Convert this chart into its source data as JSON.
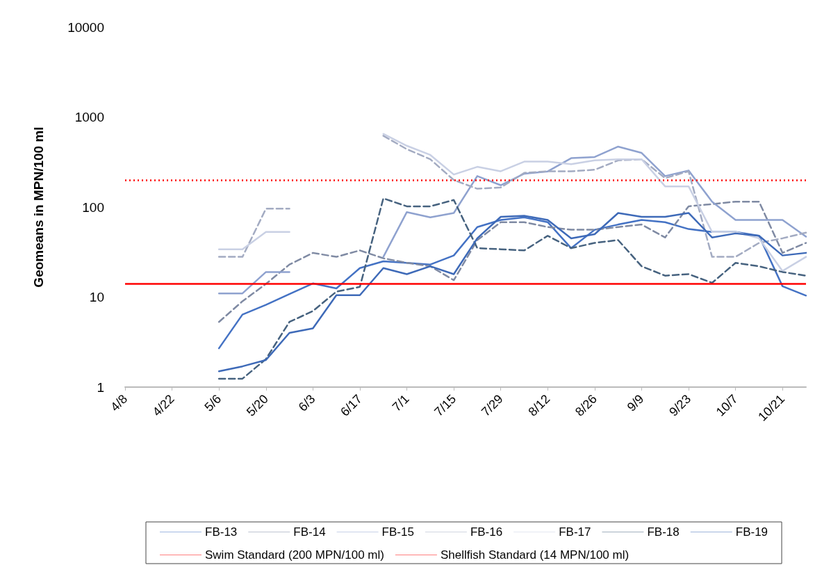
{
  "chart_data": {
    "type": "line",
    "ylabel": "Geomeans in MPN/100 ml",
    "categories": [
      "4/8",
      null,
      "4/22",
      null,
      "5/6",
      null,
      "5/20",
      null,
      "6/3",
      null,
      "6/17",
      null,
      "7/1",
      null,
      "7/15",
      null,
      "7/29",
      null,
      "8/12",
      null,
      "8/26",
      null,
      "9/9",
      null,
      "9/23",
      null,
      "10/7",
      null,
      "10/21",
      null
    ],
    "log": "y",
    "ylim": [
      1,
      10000
    ],
    "yticks": [
      1,
      10,
      100,
      1000,
      10000
    ],
    "grid": false,
    "legend": "bottom",
    "marker": "none",
    "series": [
      {
        "name": "FB-13",
        "color": "#4472c4",
        "line_style": "solid",
        "values": [
          null,
          null,
          null,
          null,
          2.7,
          6.4,
          8.2,
          10.8,
          14.2,
          12.5,
          21,
          25,
          24,
          23,
          29,
          60,
          72,
          77,
          68,
          35,
          56,
          64,
          72,
          68,
          57,
          53,
          53,
          48,
          13.2,
          10.4
        ]
      },
      {
        "name": "FB-14",
        "color": "#7f8aa3",
        "line_style": "dashed",
        "values": [
          null,
          null,
          null,
          null,
          5.3,
          9,
          14,
          23,
          31,
          28,
          33,
          27,
          24,
          22,
          15.4,
          43,
          68,
          68,
          60,
          56,
          56,
          60,
          64,
          46,
          102,
          108,
          115,
          115,
          31,
          40
        ]
      },
      {
        "name": "FB-15",
        "color": "#8fa2cf",
        "line_style": "solid",
        "values": [
          null,
          null,
          null,
          null,
          11,
          11,
          19,
          19,
          null,
          null,
          null,
          28,
          88,
          77,
          86,
          221,
          175,
          235,
          249,
          350,
          360,
          470,
          400,
          221,
          255,
          115,
          72,
          72,
          72,
          47
        ]
      },
      {
        "name": "FB-16",
        "color": "#a3abc2",
        "line_style": "dashed",
        "values": [
          null,
          null,
          null,
          null,
          28,
          28,
          96,
          96,
          null,
          null,
          null,
          620,
          440,
          340,
          200,
          160,
          165,
          240,
          250,
          250,
          260,
          330,
          340,
          210,
          250,
          28,
          28,
          40,
          45,
          52
        ]
      },
      {
        "name": "FB-17",
        "color": "#c9d0e4",
        "line_style": "solid",
        "values": [
          null,
          null,
          null,
          null,
          34,
          34,
          53,
          53,
          null,
          null,
          null,
          650,
          480,
          380,
          230,
          280,
          250,
          320,
          320,
          300,
          330,
          340,
          340,
          170,
          170,
          53,
          53,
          45,
          19.5,
          28
        ]
      },
      {
        "name": "FB-18",
        "color": "#46627f",
        "line_style": "dashed",
        "values": [
          null,
          null,
          null,
          null,
          1.24,
          1.24,
          2.05,
          5.3,
          7,
          11.5,
          13,
          125,
          102,
          102,
          120,
          35,
          34,
          33,
          48,
          35,
          40,
          43,
          22,
          17.3,
          18,
          14.4,
          24,
          22,
          19,
          17.3
        ]
      },
      {
        "name": "FB-19",
        "color": "#3e6ab8",
        "line_style": "solid",
        "values": [
          null,
          null,
          null,
          null,
          1.5,
          1.7,
          2,
          4,
          4.5,
          10.5,
          10.5,
          21,
          18,
          22,
          18,
          45,
          78,
          80,
          72,
          45,
          50,
          86,
          78,
          78,
          86,
          46,
          51,
          48,
          29,
          31
        ]
      }
    ],
    "ref_lines": [
      {
        "axis": "y",
        "value": 200,
        "label": "Swim Standard (200 MPN/100 ml)",
        "color": "#ff0000",
        "line_style": "dotted"
      },
      {
        "axis": "y",
        "value": 14,
        "label": "Shellfish Standard (14 MPN/100 ml)",
        "color": "#ff0000",
        "line_style": "solid"
      }
    ]
  }
}
